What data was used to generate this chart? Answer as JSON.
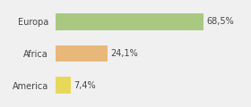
{
  "categories": [
    "Europa",
    "Africa",
    "America"
  ],
  "values": [
    68.5,
    24.1,
    7.4
  ],
  "labels": [
    "68,5%",
    "24,1%",
    "7,4%"
  ],
  "bar_colors": [
    "#a8c97f",
    "#e8b87a",
    "#e8d85a"
  ],
  "background_color": "#f0f0f0",
  "xlim": [
    0,
    88
  ],
  "bar_height": 0.52,
  "label_fontsize": 7,
  "tick_fontsize": 7
}
